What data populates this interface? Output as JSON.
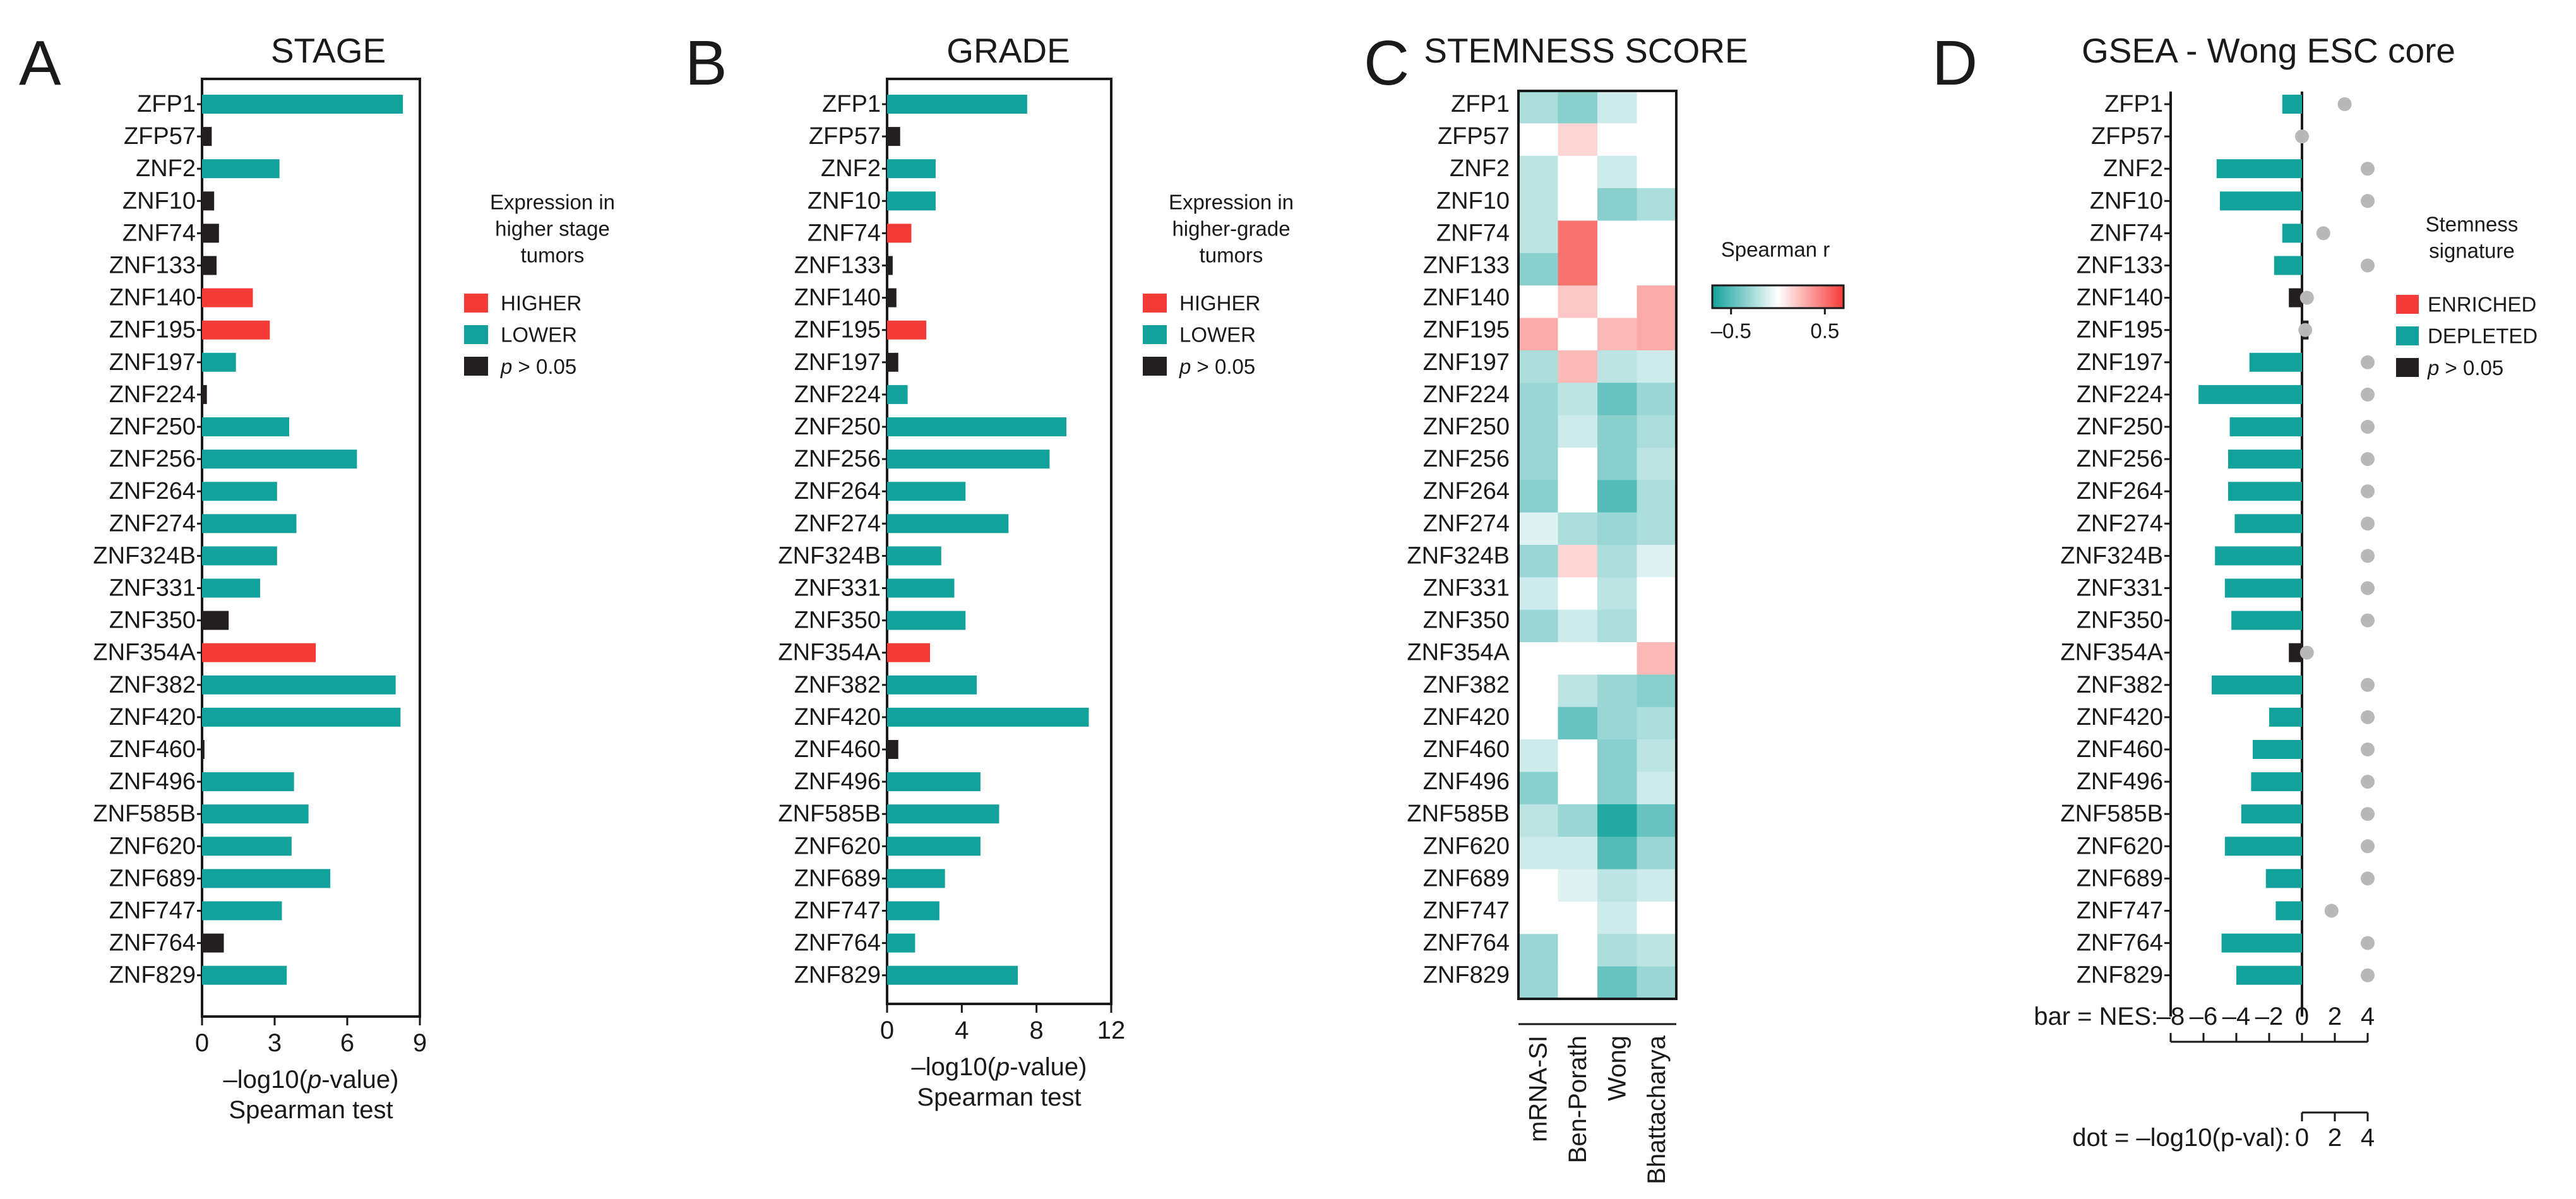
{
  "genes": [
    "ZFP1",
    "ZFP57",
    "ZNF2",
    "ZNF10",
    "ZNF74",
    "ZNF133",
    "ZNF140",
    "ZNF195",
    "ZNF197",
    "ZNF224",
    "ZNF250",
    "ZNF256",
    "ZNF264",
    "ZNF274",
    "ZNF324B",
    "ZNF331",
    "ZNF350",
    "ZNF354A",
    "ZNF382",
    "ZNF420",
    "ZNF460",
    "ZNF496",
    "ZNF585B",
    "ZNF620",
    "ZNF689",
    "ZNF747",
    "ZNF764",
    "ZNF829"
  ],
  "colors": {
    "higher": "#f33b37",
    "lower": "#13a19b",
    "ns": "#231f20",
    "dot": "#b8b8b8",
    "heat_neg": "#13a19b",
    "heat_pos": "#f33b37"
  },
  "chart_data": [
    {
      "panel": "A",
      "type": "bar",
      "title": "STAGE",
      "categories_ref": "genes",
      "values": [
        8.3,
        0.4,
        3.2,
        0.5,
        0.7,
        0.6,
        2.1,
        2.8,
        1.4,
        0.2,
        3.6,
        6.4,
        3.1,
        3.9,
        3.1,
        2.4,
        1.1,
        4.7,
        8.0,
        8.2,
        0.1,
        3.8,
        4.4,
        3.7,
        5.3,
        3.3,
        0.9,
        3.5
      ],
      "status": [
        "lower",
        "ns",
        "lower",
        "ns",
        "ns",
        "ns",
        "higher",
        "higher",
        "lower",
        "ns",
        "lower",
        "lower",
        "lower",
        "lower",
        "lower",
        "lower",
        "ns",
        "higher",
        "lower",
        "lower",
        "ns",
        "lower",
        "lower",
        "lower",
        "lower",
        "lower",
        "ns",
        "lower"
      ],
      "xlim": [
        0,
        9
      ],
      "xticks": [
        0,
        3,
        6,
        9
      ],
      "xlabel1": "–log10(p-value)",
      "xlabel2": "Spearman test",
      "legend": {
        "title_lines": [
          "Expression in",
          "higher stage",
          "tumors"
        ],
        "items": [
          "HIGHER",
          "LOWER",
          "p > 0.05"
        ]
      }
    },
    {
      "panel": "B",
      "type": "bar",
      "title": "GRADE",
      "categories_ref": "genes",
      "values": [
        7.5,
        0.7,
        2.6,
        2.6,
        1.3,
        0.3,
        0.5,
        2.1,
        0.6,
        1.1,
        9.6,
        8.7,
        4.2,
        6.5,
        2.9,
        3.6,
        4.2,
        2.3,
        4.8,
        10.8,
        0.6,
        5.0,
        6.0,
        5.0,
        3.1,
        2.8,
        1.5,
        7.0
      ],
      "status": [
        "lower",
        "ns",
        "lower",
        "lower",
        "higher",
        "ns",
        "ns",
        "higher",
        "ns",
        "lower",
        "lower",
        "lower",
        "lower",
        "lower",
        "lower",
        "lower",
        "lower",
        "higher",
        "lower",
        "lower",
        "ns",
        "lower",
        "lower",
        "lower",
        "lower",
        "lower",
        "lower",
        "lower"
      ],
      "xlim": [
        0,
        12
      ],
      "xticks": [
        0,
        4,
        8,
        12
      ],
      "xlabel1": "–log10(p-value)",
      "xlabel2": "Spearman test",
      "legend": {
        "title_lines": [
          "Expression in",
          "higher-grade",
          "tumors"
        ],
        "items": [
          "HIGHER",
          "LOWER",
          "p > 0.05"
        ]
      }
    },
    {
      "panel": "C",
      "type": "heatmap",
      "title": "STEMNESS SCORE",
      "categories_ref": "genes",
      "columns": [
        "mRNA-SI",
        "Ben-Porath",
        "Wong",
        "Bhattacharya"
      ],
      "values": [
        [
          -0.25,
          -0.35,
          -0.15,
          0.0
        ],
        [
          0.0,
          0.15,
          0.0,
          0.0
        ],
        [
          -0.2,
          0.0,
          -0.15,
          0.0
        ],
        [
          -0.2,
          0.0,
          -0.35,
          -0.25
        ],
        [
          -0.2,
          0.5,
          0.0,
          0.0
        ],
        [
          -0.35,
          0.5,
          0.0,
          0.0
        ],
        [
          0.0,
          0.2,
          0.0,
          0.3
        ],
        [
          0.3,
          0.0,
          0.25,
          0.3
        ],
        [
          -0.25,
          0.25,
          -0.2,
          -0.15
        ],
        [
          -0.3,
          -0.2,
          -0.45,
          -0.3
        ],
        [
          -0.3,
          -0.15,
          -0.35,
          -0.25
        ],
        [
          -0.3,
          0.0,
          -0.35,
          -0.2
        ],
        [
          -0.35,
          0.0,
          -0.5,
          -0.25
        ],
        [
          -0.1,
          -0.25,
          -0.3,
          -0.25
        ],
        [
          -0.3,
          0.15,
          -0.25,
          -0.1
        ],
        [
          -0.15,
          0.0,
          -0.2,
          0.0
        ],
        [
          -0.3,
          -0.15,
          -0.25,
          0.0
        ],
        [
          0.0,
          0.0,
          0.0,
          0.25
        ],
        [
          0.0,
          -0.2,
          -0.3,
          -0.35
        ],
        [
          0.0,
          -0.45,
          -0.3,
          -0.25
        ],
        [
          -0.15,
          0.0,
          -0.35,
          -0.2
        ],
        [
          -0.35,
          0.0,
          -0.35,
          -0.15
        ],
        [
          -0.2,
          -0.3,
          -0.65,
          -0.45
        ],
        [
          -0.15,
          -0.15,
          -0.5,
          -0.3
        ],
        [
          0.0,
          -0.1,
          -0.2,
          -0.15
        ],
        [
          0.0,
          0.0,
          -0.15,
          0.0
        ],
        [
          -0.3,
          0.0,
          -0.25,
          -0.2
        ],
        [
          -0.3,
          0.0,
          -0.45,
          -0.3
        ]
      ],
      "colorbar": {
        "label": "Spearman r",
        "range": [
          -0.7,
          0.7
        ],
        "ticks": [
          "–0.5",
          "0.5"
        ]
      }
    },
    {
      "panel": "D",
      "type": "bar",
      "title": "GSEA - Wong ESC core",
      "categories_ref": "genes",
      "nes": [
        -1.2,
        0.0,
        -5.2,
        -5.0,
        -1.2,
        -1.7,
        -0.8,
        0.4,
        -3.2,
        -6.3,
        -4.4,
        -4.5,
        -4.5,
        -4.1,
        -5.3,
        -4.7,
        -4.3,
        -0.8,
        -5.5,
        -2.0,
        -3.0,
        -3.1,
        -3.7,
        -4.7,
        -2.2,
        -1.6,
        -4.9,
        -4.0
      ],
      "status": [
        "lower",
        "ns",
        "lower",
        "lower",
        "lower",
        "lower",
        "ns",
        "ns",
        "lower",
        "lower",
        "lower",
        "lower",
        "lower",
        "lower",
        "lower",
        "lower",
        "lower",
        "ns",
        "lower",
        "lower",
        "lower",
        "lower",
        "lower",
        "lower",
        "lower",
        "lower",
        "lower",
        "lower"
      ],
      "neglog10p": [
        2.6,
        0.0,
        4.0,
        4.0,
        1.3,
        4.0,
        0.3,
        0.2,
        4.0,
        4.0,
        4.0,
        4.0,
        4.0,
        4.0,
        4.0,
        4.0,
        4.0,
        0.3,
        4.0,
        4.0,
        4.0,
        4.0,
        4.0,
        4.0,
        4.0,
        1.8,
        4.0,
        4.0
      ],
      "xlim": [
        -8,
        4
      ],
      "xticks": [
        -8,
        -6,
        -4,
        -2,
        0,
        2,
        4
      ],
      "xtick_labels": [
        "–8",
        "–6",
        "–4",
        "–2",
        "0",
        "2",
        "4"
      ],
      "xlabel_bar": "bar = NES:",
      "dot_axis": {
        "xlim": [
          0,
          4
        ],
        "xticks": [
          0,
          2,
          4
        ],
        "xtick_labels": [
          "0",
          "2",
          "4"
        ],
        "label": "dot = –log10(p-val):"
      },
      "legend": {
        "title_lines": [
          "Stemness",
          "signature"
        ],
        "items": [
          "ENRICHED",
          "DEPLETED",
          "p > 0.05"
        ]
      }
    }
  ],
  "panel_labels": [
    "A",
    "B",
    "C",
    "D"
  ]
}
